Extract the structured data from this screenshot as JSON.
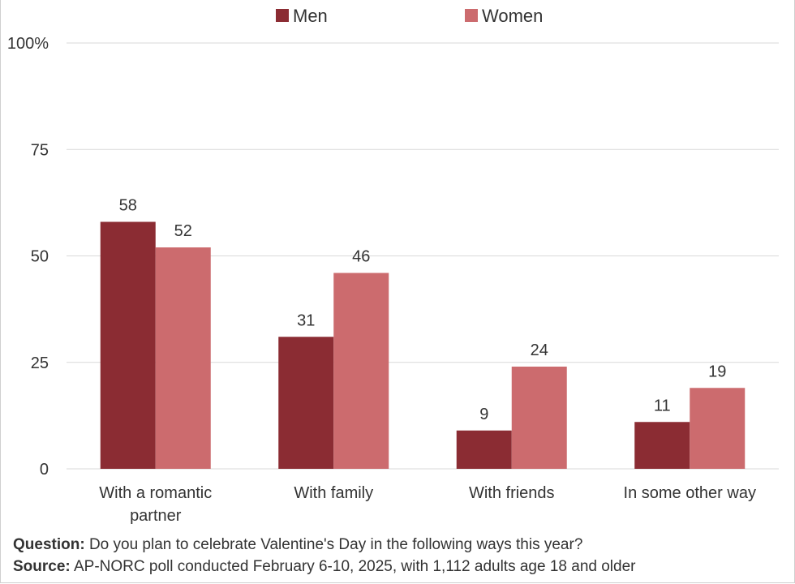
{
  "colors": {
    "men": "#8b2c33",
    "women": "#cc6b6e",
    "grid": "#d9d9d9",
    "text": "#333333"
  },
  "chart_data": {
    "type": "bar",
    "categories": [
      [
        "With a romantic",
        "partner"
      ],
      [
        "With family"
      ],
      [
        "With friends"
      ],
      [
        "In some other way"
      ]
    ],
    "series": [
      {
        "name": "Men",
        "values": [
          58,
          31,
          9,
          11
        ]
      },
      {
        "name": "Women",
        "values": [
          52,
          46,
          24,
          19
        ]
      }
    ],
    "yticks": [
      "0",
      "25",
      "50",
      "75",
      "100%"
    ],
    "ylim": [
      0,
      100
    ],
    "grid": true,
    "legend": "top-center",
    "data_labels": true
  },
  "footer": {
    "question_label": "Question:",
    "question_text": " Do you plan to celebrate Valentine's Day in the following ways this year?",
    "source_label": "Source:",
    "source_text": " AP-NORC poll conducted February 6-10, 2025, with 1,112 adults age 18 and older"
  }
}
